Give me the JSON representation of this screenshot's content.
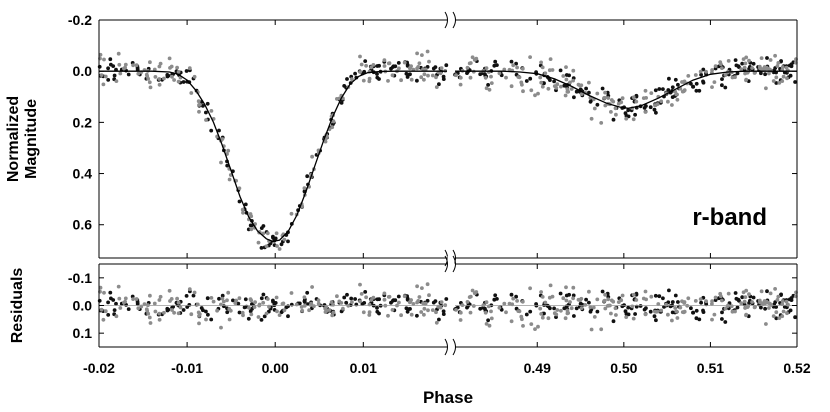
{
  "chart_data": {
    "type": "scatter",
    "xlabel": "Phase",
    "band_label": "r-band",
    "panels": [
      {
        "name": "magnitude",
        "ylabel_lines": [
          "Normalized",
          "Magnitude"
        ],
        "ylim": [
          0.73,
          -0.2
        ],
        "yticks": [
          -0.2,
          0.0,
          0.2,
          0.4,
          0.6
        ],
        "ytick_labels": [
          "-0.2",
          "0.0",
          "0.2",
          "0.4",
          "0.6"
        ]
      },
      {
        "name": "residuals",
        "ylabel_lines": [
          "Residuals"
        ],
        "ylim": [
          0.15,
          -0.15
        ],
        "yticks": [
          0.1,
          0.0,
          -0.1
        ],
        "ytick_labels": [
          "0.1",
          "0.0",
          "-0.1"
        ]
      }
    ],
    "x_segments": [
      {
        "name": "primary eclipse",
        "xlim": [
          -0.02,
          0.0195
        ],
        "xticks": [
          -0.02,
          -0.01,
          0.0,
          0.01
        ],
        "xtick_labels": [
          "-0.02",
          "-0.01",
          "0.00",
          "0.01"
        ]
      },
      {
        "name": "secondary eclipse",
        "xlim": [
          0.4805,
          0.52
        ],
        "xticks": [
          0.49,
          0.5,
          0.51,
          0.52
        ],
        "xtick_labels": [
          "0.49",
          "0.50",
          "0.51",
          "0.52"
        ]
      }
    ],
    "model": [
      {
        "segment": 0,
        "points": [
          [
            -0.02,
            0.0
          ],
          [
            -0.018,
            0.0
          ],
          [
            -0.016,
            0.0
          ],
          [
            -0.014,
            0.0
          ],
          [
            -0.012,
            0.003
          ],
          [
            -0.011,
            0.012
          ],
          [
            -0.01,
            0.035
          ],
          [
            -0.009,
            0.075
          ],
          [
            -0.008,
            0.13
          ],
          [
            -0.007,
            0.2
          ],
          [
            -0.006,
            0.29
          ],
          [
            -0.005,
            0.39
          ],
          [
            -0.004,
            0.49
          ],
          [
            -0.003,
            0.57
          ],
          [
            -0.002,
            0.625
          ],
          [
            -0.001,
            0.655
          ],
          [
            -0.0003,
            0.665
          ],
          [
            0.0005,
            0.66
          ],
          [
            0.0015,
            0.625
          ],
          [
            0.0025,
            0.56
          ],
          [
            0.0035,
            0.47
          ],
          [
            0.0045,
            0.37
          ],
          [
            0.0055,
            0.27
          ],
          [
            0.0065,
            0.18
          ],
          [
            0.0075,
            0.105
          ],
          [
            0.0085,
            0.05
          ],
          [
            0.0095,
            0.02
          ],
          [
            0.0105,
            0.006
          ],
          [
            0.012,
            0.001
          ],
          [
            0.014,
            0.0
          ],
          [
            0.0195,
            0.0
          ]
        ]
      },
      {
        "segment": 1,
        "points": [
          [
            0.4805,
            0.0
          ],
          [
            0.486,
            0.0
          ],
          [
            0.488,
            0.003
          ],
          [
            0.49,
            0.01
          ],
          [
            0.492,
            0.03
          ],
          [
            0.494,
            0.06
          ],
          [
            0.496,
            0.095
          ],
          [
            0.498,
            0.125
          ],
          [
            0.4995,
            0.14
          ],
          [
            0.5005,
            0.145
          ],
          [
            0.502,
            0.135
          ],
          [
            0.504,
            0.105
          ],
          [
            0.506,
            0.07
          ],
          [
            0.508,
            0.035
          ],
          [
            0.51,
            0.012
          ],
          [
            0.512,
            0.003
          ],
          [
            0.514,
            0.0
          ],
          [
            0.52,
            0.0
          ]
        ]
      }
    ],
    "scatter_style": {
      "series": [
        {
          "color": "#111111"
        },
        {
          "color": "#8c8c8c"
        }
      ],
      "note": "two observation sets drawn as small dots around the model curve; residuals scattered about zero"
    },
    "axis_break": "between 0.0195 and 0.4805 on the x axis",
    "grid": false
  }
}
